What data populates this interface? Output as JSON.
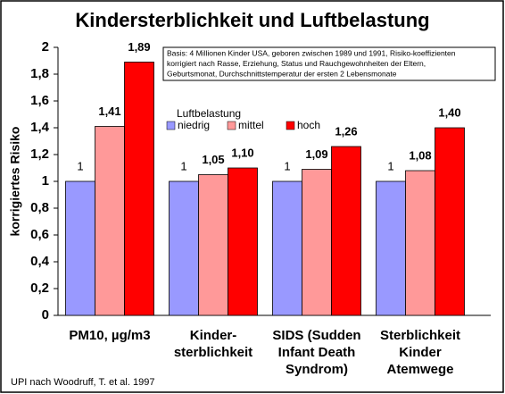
{
  "chart_data": {
    "type": "bar",
    "title": "Kindersterblichkeit und Luftbelastung",
    "y_label": "korrigiertes Risiko",
    "categories": [
      "PM10, µg/m3",
      "Kinder-\nsterblichkeit",
      "SIDS (Sudden\nInfant Death\nSyndrom)",
      "Sterblichkeit\nKinder\nAtemwege"
    ],
    "legend_title": "Luftbelastung",
    "series": [
      {
        "name": "niedrig",
        "color": "#9999ff",
        "values": [
          1,
          1,
          1,
          1
        ],
        "value_labels": [
          "1",
          "1",
          "1",
          "1"
        ]
      },
      {
        "name": "mittel",
        "color": "#ff9999",
        "values": [
          1.41,
          1.05,
          1.09,
          1.08
        ],
        "value_labels": [
          "1,41",
          "1,05",
          "1,09",
          "1,08"
        ]
      },
      {
        "name": "hoch",
        "color": "#ff0000",
        "values": [
          1.89,
          1.1,
          1.26,
          1.4
        ],
        "value_labels": [
          "1,89",
          "1,10",
          "1,26",
          "1,40"
        ]
      }
    ],
    "ylim": [
      0,
      2
    ],
    "yticks": [
      0,
      {
        "value": 0.2,
        "label": "0,2"
      },
      {
        "value": 0.4,
        "label": "0,4"
      },
      {
        "value": 0.6,
        "label": "0,6"
      },
      {
        "value": 0.8,
        "label": "0,8"
      },
      1,
      {
        "value": 1.2,
        "label": "1,2"
      },
      {
        "value": 1.4,
        "label": "1,4"
      },
      {
        "value": 1.6,
        "label": "1,6"
      },
      {
        "value": 1.8,
        "label": "1,8"
      },
      2
    ],
    "grid": false,
    "annotation": [
      "Basis: 4 Millionen Kinder USA, geboren zwischen 1989 und 1991, Risiko-koeffizienten",
      "korrigiert nach Rasse, Erziehung, Status und Rauchgewohnheiten der Eltern,",
      "Geburtsmonat, Durchschnittstemperatur der ersten 2 Lebensmonate"
    ],
    "source": "UPI  nach Woodruff, T.  et al. 1997"
  }
}
